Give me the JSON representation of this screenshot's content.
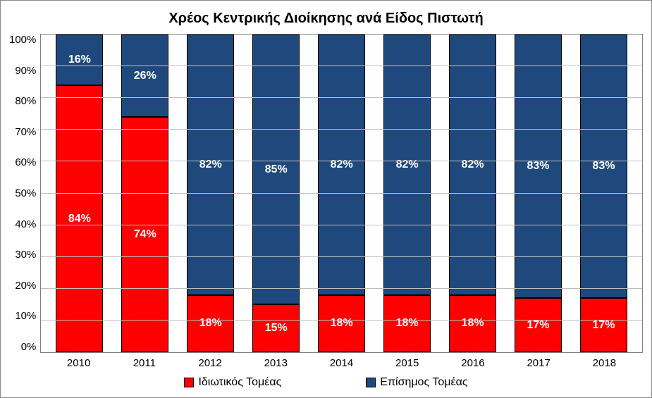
{
  "chart": {
    "type": "stacked-bar-100",
    "title": "Χρέος Κεντρικής Διοίκησης ανά Είδος Πιστωτή",
    "title_fontsize": 20,
    "background_color": "#ffffff",
    "border_color": "#888888",
    "plot_border_color": "#7f7f7f",
    "grid_color": "#bfbfbf",
    "axis_label_color": "#000000",
    "axis_fontsize": 15,
    "data_label_fontsize": 16,
    "data_label_color": "#ffffff",
    "bar_width_pct": 72,
    "ylim": [
      0,
      100
    ],
    "ytick_step": 10,
    "yticks": [
      "100%",
      "90%",
      "80%",
      "70%",
      "60%",
      "50%",
      "40%",
      "30%",
      "20%",
      "10%",
      "0%"
    ],
    "categories": [
      "2010",
      "2011",
      "2012",
      "2013",
      "2014",
      "2015",
      "2016",
      "2017",
      "2018"
    ],
    "series": [
      {
        "key": "private",
        "label": "Ιδιωτικός Τομέας",
        "color": "#ff0000",
        "values": [
          84,
          74,
          18,
          15,
          18,
          18,
          18,
          17,
          17
        ],
        "labels": [
          "84%",
          "74%",
          "18%",
          "15%",
          "18%",
          "18%",
          "18%",
          "17%",
          "17%"
        ]
      },
      {
        "key": "official",
        "label": "Επίσημος Τομέας",
        "color": "#1f497d",
        "values": [
          16,
          26,
          82,
          85,
          82,
          82,
          82,
          83,
          83
        ],
        "labels": [
          "16%",
          "26%",
          "82%",
          "85%",
          "82%",
          "82%",
          "82%",
          "83%",
          "83%"
        ]
      }
    ],
    "legend_fontsize": 16,
    "legend_swatch_border": "#000000"
  }
}
